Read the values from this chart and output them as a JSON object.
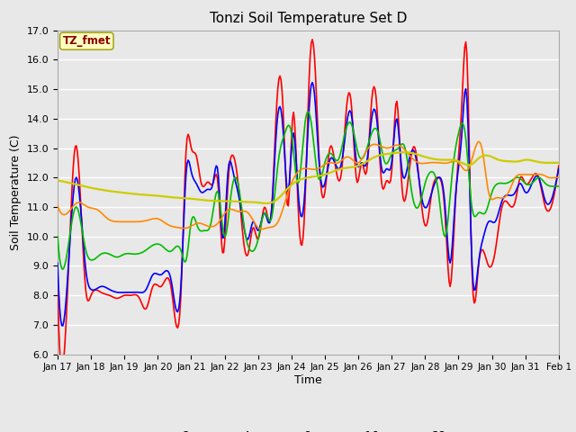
{
  "title": "Tonzi Soil Temperature Set D",
  "xlabel": "Time",
  "ylabel": "Soil Temperature (C)",
  "ylim": [
    6.0,
    17.0
  ],
  "yticks": [
    6.0,
    7.0,
    8.0,
    9.0,
    10.0,
    11.0,
    12.0,
    13.0,
    14.0,
    15.0,
    16.0,
    17.0
  ],
  "annotation": "TZ_fmet",
  "annotation_color": "#8B0000",
  "annotation_bg": "#FFFFC0",
  "bg_color": "#E8E8E8",
  "grid_color": "#FFFFFF",
  "series_colors": {
    "-2cm": "#FF0000",
    "-4cm": "#0000FF",
    "-8cm": "#00BB00",
    "-16cm": "#FF8800",
    "-32cm": "#CCCC00"
  },
  "x_labels": [
    "Jan 17",
    "Jan 18",
    "Jan 19",
    "Jan 20",
    "Jan 21",
    "Jan 22",
    "Jan 23",
    "Jan 24",
    "Jan 25",
    "Jan 26",
    "Jan 27",
    "Jan 28",
    "Jan 29",
    "Jan 30",
    "Jan 31",
    "Feb 1"
  ],
  "figsize": [
    6.4,
    4.8
  ],
  "dpi": 100
}
